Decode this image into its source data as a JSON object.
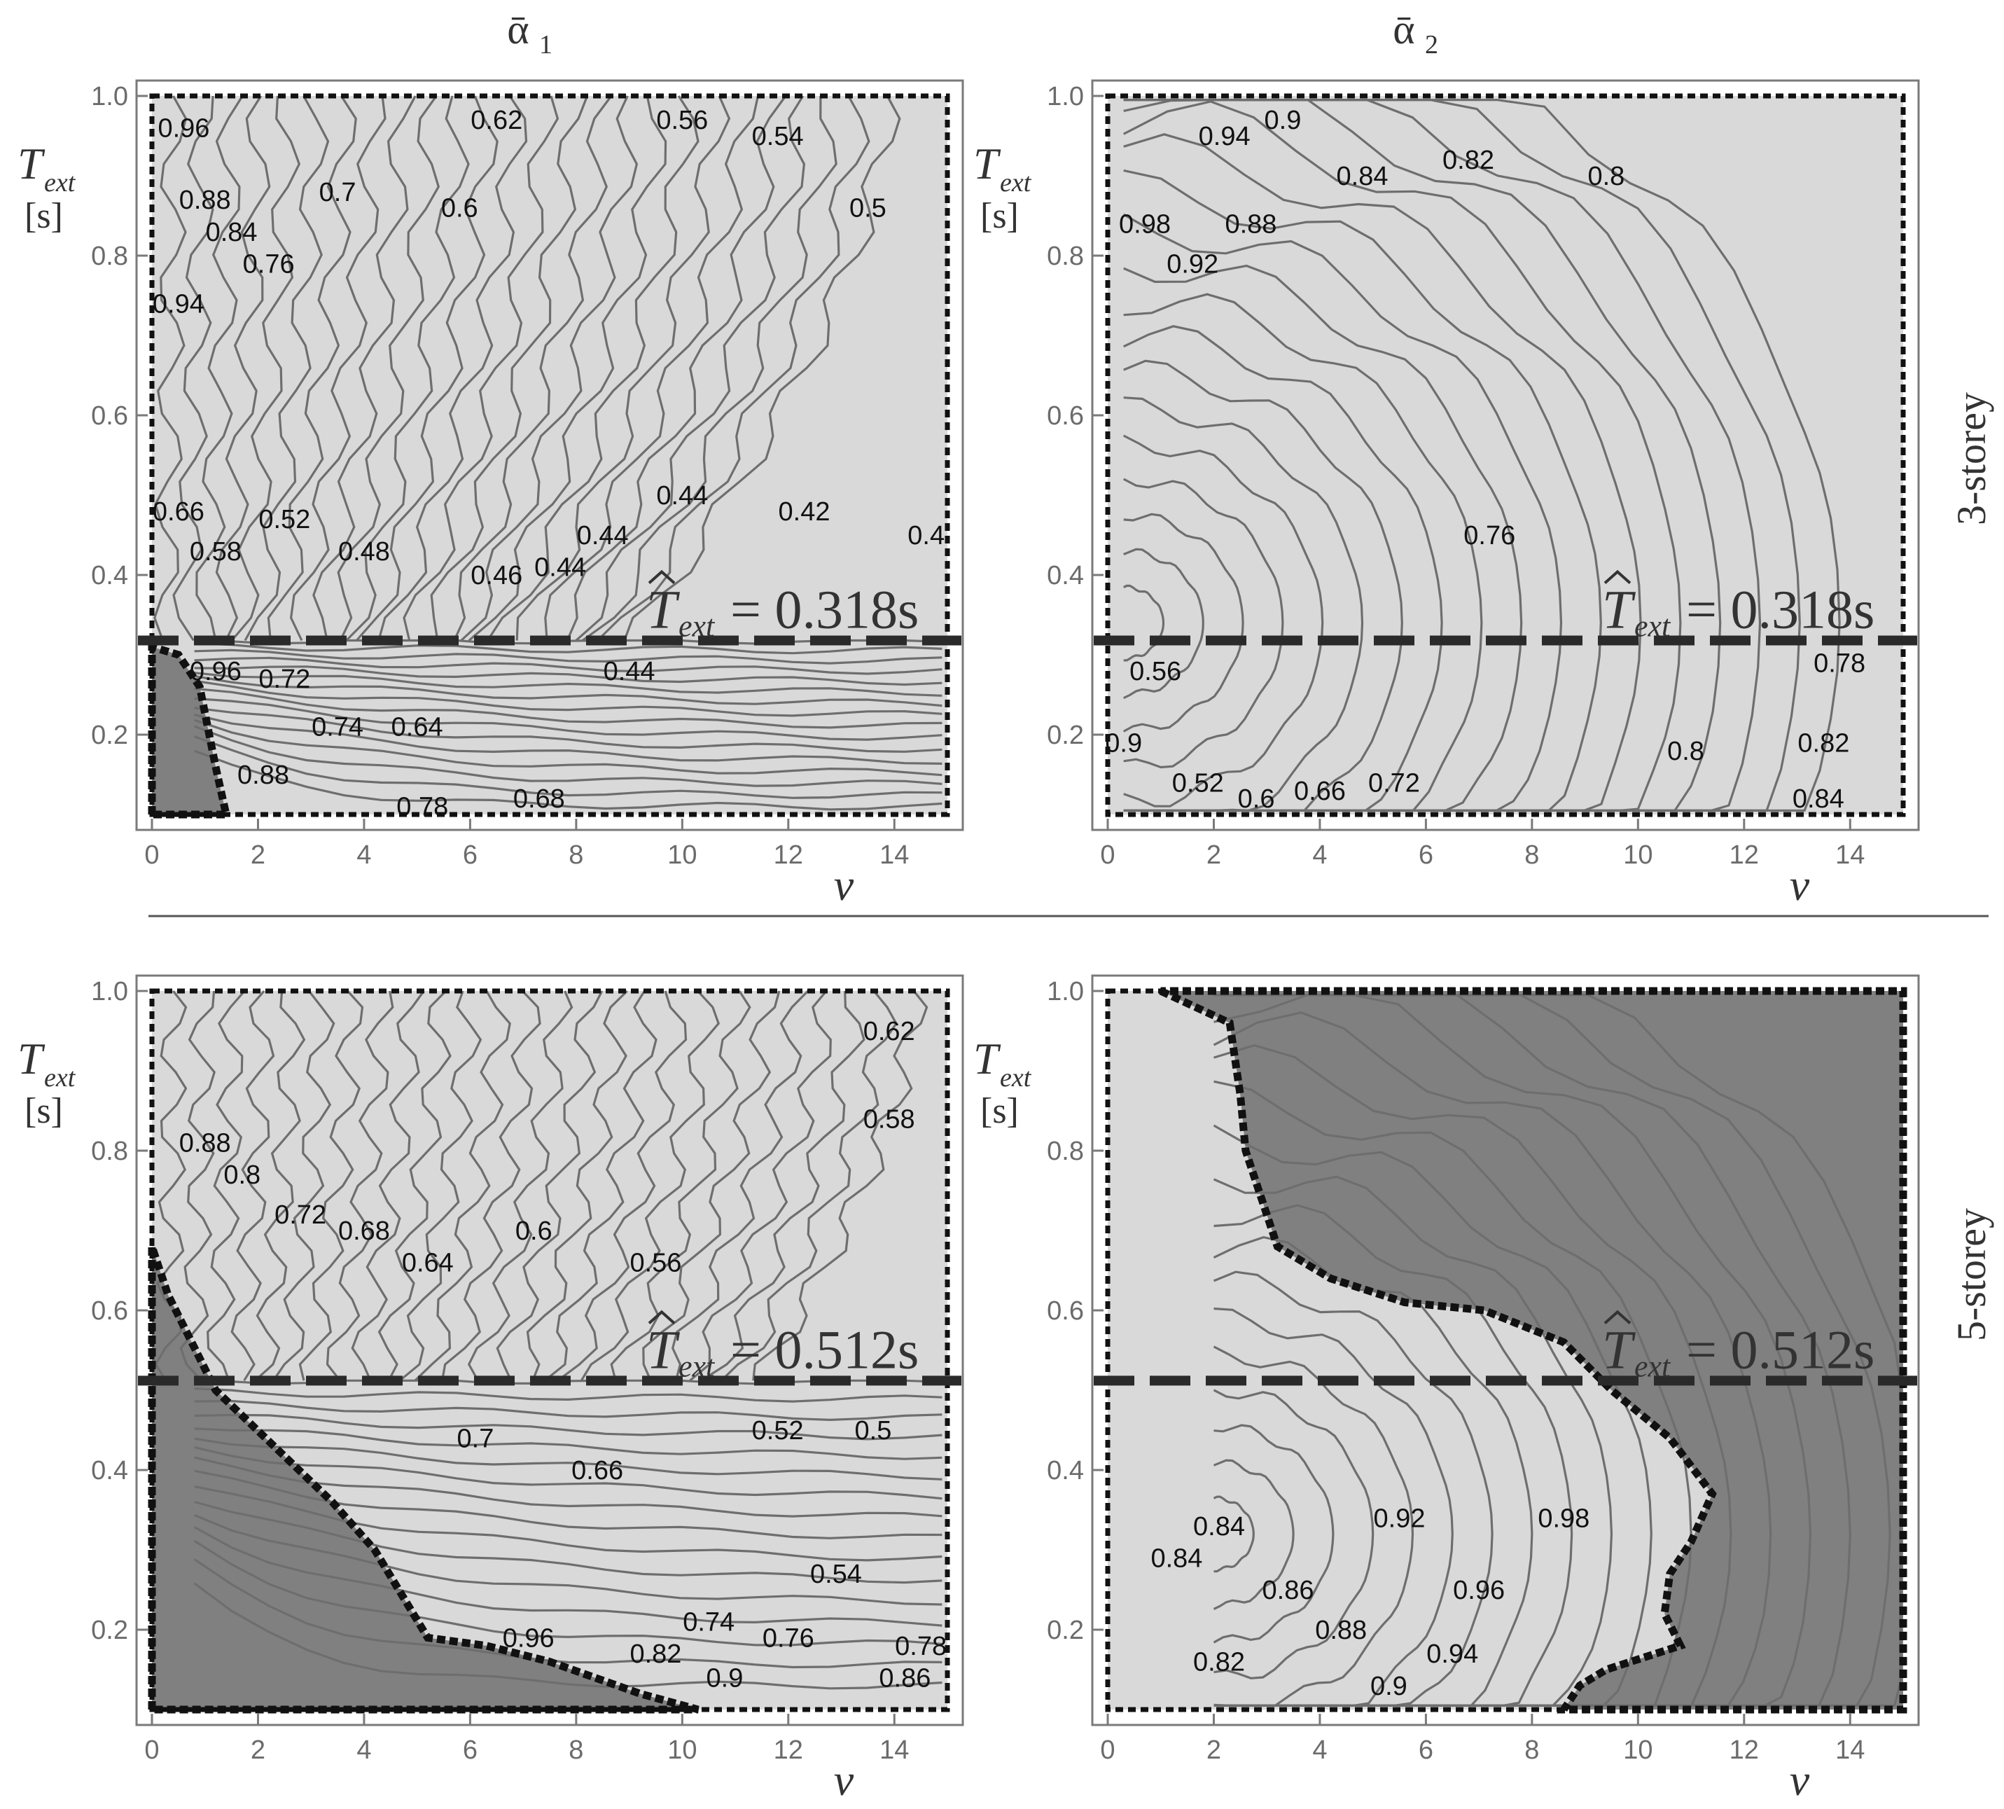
{
  "figure": {
    "column_titles": [
      "ᾱ",
      "ᾱ"
    ],
    "column_subscripts": [
      "1",
      "2"
    ],
    "row_labels": [
      "3-storey",
      "5-storey"
    ],
    "ylabel_main": "T",
    "ylabel_sub": "ext",
    "ylabel_unit": "[s]",
    "xlabel": "ν",
    "colors": {
      "light_region": "#d9d9d9",
      "dark_region": "#808080",
      "contour": "#6e6e6e",
      "boundary": "#111111",
      "threshold_line": "#2a2a2a"
    }
  },
  "chart_data": [
    {
      "type": "contour",
      "panel": "3-storey ᾱ1",
      "xlim": [
        0,
        15
      ],
      "ylim": [
        0.1,
        1.0
      ],
      "xticks": [
        0,
        2,
        4,
        6,
        8,
        10,
        12,
        14
      ],
      "yticks": [
        0.2,
        0.4,
        0.6,
        0.8,
        1.0
      ],
      "threshold": {
        "y": 0.318,
        "label_main": "T",
        "label_sub": "ext",
        "label_value": "= 0.318s"
      },
      "dark_region": [
        [
          0,
          0.1
        ],
        [
          0,
          0.31
        ],
        [
          0.5,
          0.3
        ],
        [
          0.9,
          0.26
        ],
        [
          1.2,
          0.16
        ],
        [
          1.4,
          0.1
        ]
      ],
      "labels": [
        {
          "text": "0.96",
          "x": 0.6,
          "y": 0.96
        },
        {
          "text": "0.62",
          "x": 6.5,
          "y": 0.97
        },
        {
          "text": "0.56",
          "x": 10.0,
          "y": 0.97
        },
        {
          "text": "0.54",
          "x": 11.8,
          "y": 0.95
        },
        {
          "text": "0.88",
          "x": 1.0,
          "y": 0.87
        },
        {
          "text": "0.7",
          "x": 3.5,
          "y": 0.88
        },
        {
          "text": "0.6",
          "x": 5.8,
          "y": 0.86
        },
        {
          "text": "0.5",
          "x": 13.5,
          "y": 0.86
        },
        {
          "text": "0.84",
          "x": 1.5,
          "y": 0.83
        },
        {
          "text": "0.76",
          "x": 2.2,
          "y": 0.79
        },
        {
          "text": "0.94",
          "x": 0.5,
          "y": 0.74
        },
        {
          "text": "0.44",
          "x": 10.0,
          "y": 0.5
        },
        {
          "text": "0.44",
          "x": 8.5,
          "y": 0.45
        },
        {
          "text": "0.42",
          "x": 12.3,
          "y": 0.48
        },
        {
          "text": "0.4",
          "x": 14.6,
          "y": 0.45
        },
        {
          "text": "0.66",
          "x": 0.5,
          "y": 0.48
        },
        {
          "text": "0.52",
          "x": 2.5,
          "y": 0.47
        },
        {
          "text": "0.58",
          "x": 1.2,
          "y": 0.43
        },
        {
          "text": "0.48",
          "x": 4.0,
          "y": 0.43
        },
        {
          "text": "0.46",
          "x": 6.5,
          "y": 0.4
        },
        {
          "text": "0.44",
          "x": 7.7,
          "y": 0.41
        },
        {
          "text": "0.44",
          "x": 9.0,
          "y": 0.28
        },
        {
          "text": "0.96",
          "x": 1.2,
          "y": 0.28
        },
        {
          "text": "0.72",
          "x": 2.5,
          "y": 0.27
        },
        {
          "text": "0.74",
          "x": 3.5,
          "y": 0.21
        },
        {
          "text": "0.64",
          "x": 5.0,
          "y": 0.21
        },
        {
          "text": "0.88",
          "x": 2.1,
          "y": 0.15
        },
        {
          "text": "0.78",
          "x": 5.1,
          "y": 0.11
        },
        {
          "text": "0.68",
          "x": 7.3,
          "y": 0.12
        }
      ]
    },
    {
      "type": "contour",
      "panel": "3-storey ᾱ2",
      "xlim": [
        0,
        15
      ],
      "ylim": [
        0.1,
        1.0
      ],
      "xticks": [
        0,
        2,
        4,
        6,
        8,
        10,
        12,
        14
      ],
      "yticks": [
        0.2,
        0.4,
        0.6,
        0.8,
        1.0
      ],
      "threshold": {
        "y": 0.318,
        "label_main": "T",
        "label_sub": "ext",
        "label_value": "= 0.318s"
      },
      "dark_region": [],
      "labels": [
        {
          "text": "0.94",
          "x": 2.2,
          "y": 0.95
        },
        {
          "text": "0.9",
          "x": 3.3,
          "y": 0.97
        },
        {
          "text": "0.84",
          "x": 4.8,
          "y": 0.9
        },
        {
          "text": "0.82",
          "x": 6.8,
          "y": 0.92
        },
        {
          "text": "0.8",
          "x": 9.4,
          "y": 0.9
        },
        {
          "text": "0.98",
          "x": 0.7,
          "y": 0.84
        },
        {
          "text": "0.88",
          "x": 2.7,
          "y": 0.84
        },
        {
          "text": "0.92",
          "x": 1.6,
          "y": 0.79
        },
        {
          "text": "0.76",
          "x": 7.2,
          "y": 0.45
        },
        {
          "text": "0.56",
          "x": 0.9,
          "y": 0.28
        },
        {
          "text": "0.78",
          "x": 13.8,
          "y": 0.29
        },
        {
          "text": "0.9",
          "x": 0.3,
          "y": 0.19
        },
        {
          "text": "0.52",
          "x": 1.7,
          "y": 0.14
        },
        {
          "text": "0.6",
          "x": 2.8,
          "y": 0.12
        },
        {
          "text": "0.66",
          "x": 4.0,
          "y": 0.13
        },
        {
          "text": "0.72",
          "x": 5.4,
          "y": 0.14
        },
        {
          "text": "0.8",
          "x": 10.9,
          "y": 0.18
        },
        {
          "text": "0.82",
          "x": 13.5,
          "y": 0.19
        },
        {
          "text": "0.84",
          "x": 13.4,
          "y": 0.12
        }
      ]
    },
    {
      "type": "contour",
      "panel": "5-storey ᾱ1",
      "xlim": [
        0,
        15
      ],
      "ylim": [
        0.1,
        1.0
      ],
      "xticks": [
        0,
        2,
        4,
        6,
        8,
        10,
        12,
        14
      ],
      "yticks": [
        0.2,
        0.4,
        0.6,
        0.8,
        1.0
      ],
      "threshold": {
        "y": 0.512,
        "label_main": "T",
        "label_sub": "ext",
        "label_value": "= 0.512s"
      },
      "dark_region": [
        [
          0,
          0.1
        ],
        [
          0,
          0.68
        ],
        [
          0.3,
          0.62
        ],
        [
          1.2,
          0.5
        ],
        [
          2.3,
          0.43
        ],
        [
          3.4,
          0.36
        ],
        [
          4.2,
          0.3
        ],
        [
          5.2,
          0.19
        ],
        [
          6.3,
          0.18
        ],
        [
          7.5,
          0.16
        ],
        [
          9.2,
          0.12
        ],
        [
          10.3,
          0.1
        ]
      ],
      "labels": [
        {
          "text": "0.62",
          "x": 13.9,
          "y": 0.95
        },
        {
          "text": "0.58",
          "x": 13.9,
          "y": 0.84
        },
        {
          "text": "0.88",
          "x": 1.0,
          "y": 0.81
        },
        {
          "text": "0.8",
          "x": 1.7,
          "y": 0.77
        },
        {
          "text": "0.72",
          "x": 2.8,
          "y": 0.72
        },
        {
          "text": "0.68",
          "x": 4.0,
          "y": 0.7
        },
        {
          "text": "0.6",
          "x": 7.2,
          "y": 0.7
        },
        {
          "text": "0.64",
          "x": 5.2,
          "y": 0.66
        },
        {
          "text": "0.56",
          "x": 9.5,
          "y": 0.66
        },
        {
          "text": "0.7",
          "x": 6.1,
          "y": 0.44
        },
        {
          "text": "0.52",
          "x": 11.8,
          "y": 0.45
        },
        {
          "text": "0.5",
          "x": 13.6,
          "y": 0.45
        },
        {
          "text": "0.66",
          "x": 8.4,
          "y": 0.4
        },
        {
          "text": "0.54",
          "x": 12.9,
          "y": 0.27
        },
        {
          "text": "0.74",
          "x": 10.5,
          "y": 0.21
        },
        {
          "text": "0.96",
          "x": 7.1,
          "y": 0.19
        },
        {
          "text": "0.76",
          "x": 12.0,
          "y": 0.19
        },
        {
          "text": "0.78",
          "x": 14.5,
          "y": 0.18
        },
        {
          "text": "0.82",
          "x": 9.5,
          "y": 0.17
        },
        {
          "text": "0.9",
          "x": 10.8,
          "y": 0.14
        },
        {
          "text": "0.86",
          "x": 14.2,
          "y": 0.14
        }
      ]
    },
    {
      "type": "contour",
      "panel": "5-storey ᾱ2",
      "xlim": [
        0,
        15
      ],
      "ylim": [
        0.1,
        1.0
      ],
      "xticks": [
        0,
        2,
        4,
        6,
        8,
        10,
        12,
        14
      ],
      "yticks": [
        0.2,
        0.4,
        0.6,
        0.8,
        1.0
      ],
      "threshold": {
        "y": 0.512,
        "label_main": "T",
        "label_sub": "ext",
        "label_value": "= 0.512s"
      },
      "dark_region": [
        [
          1.0,
          1.0
        ],
        [
          2.3,
          0.96
        ],
        [
          2.5,
          0.87
        ],
        [
          2.6,
          0.8
        ],
        [
          2.9,
          0.74
        ],
        [
          3.2,
          0.68
        ],
        [
          4.2,
          0.64
        ],
        [
          5.6,
          0.61
        ],
        [
          7.1,
          0.6
        ],
        [
          8.6,
          0.56
        ],
        [
          9.5,
          0.5
        ],
        [
          10.6,
          0.44
        ],
        [
          11.4,
          0.37
        ],
        [
          11.0,
          0.31
        ],
        [
          10.6,
          0.27
        ],
        [
          10.5,
          0.22
        ],
        [
          10.8,
          0.18
        ],
        [
          9.4,
          0.15
        ],
        [
          8.9,
          0.13
        ],
        [
          8.6,
          0.1
        ],
        [
          15,
          0.1
        ],
        [
          15,
          1.0
        ]
      ],
      "labels": [
        {
          "text": "0.84",
          "x": 2.1,
          "y": 0.33
        },
        {
          "text": "0.84",
          "x": 1.3,
          "y": 0.29
        },
        {
          "text": "0.92",
          "x": 5.5,
          "y": 0.34
        },
        {
          "text": "0.98",
          "x": 8.6,
          "y": 0.34
        },
        {
          "text": "0.86",
          "x": 3.4,
          "y": 0.25
        },
        {
          "text": "0.96",
          "x": 7.0,
          "y": 0.25
        },
        {
          "text": "0.88",
          "x": 4.4,
          "y": 0.2
        },
        {
          "text": "0.94",
          "x": 6.5,
          "y": 0.17
        },
        {
          "text": "0.82",
          "x": 2.1,
          "y": 0.16
        },
        {
          "text": "0.9",
          "x": 5.3,
          "y": 0.13
        }
      ]
    }
  ]
}
